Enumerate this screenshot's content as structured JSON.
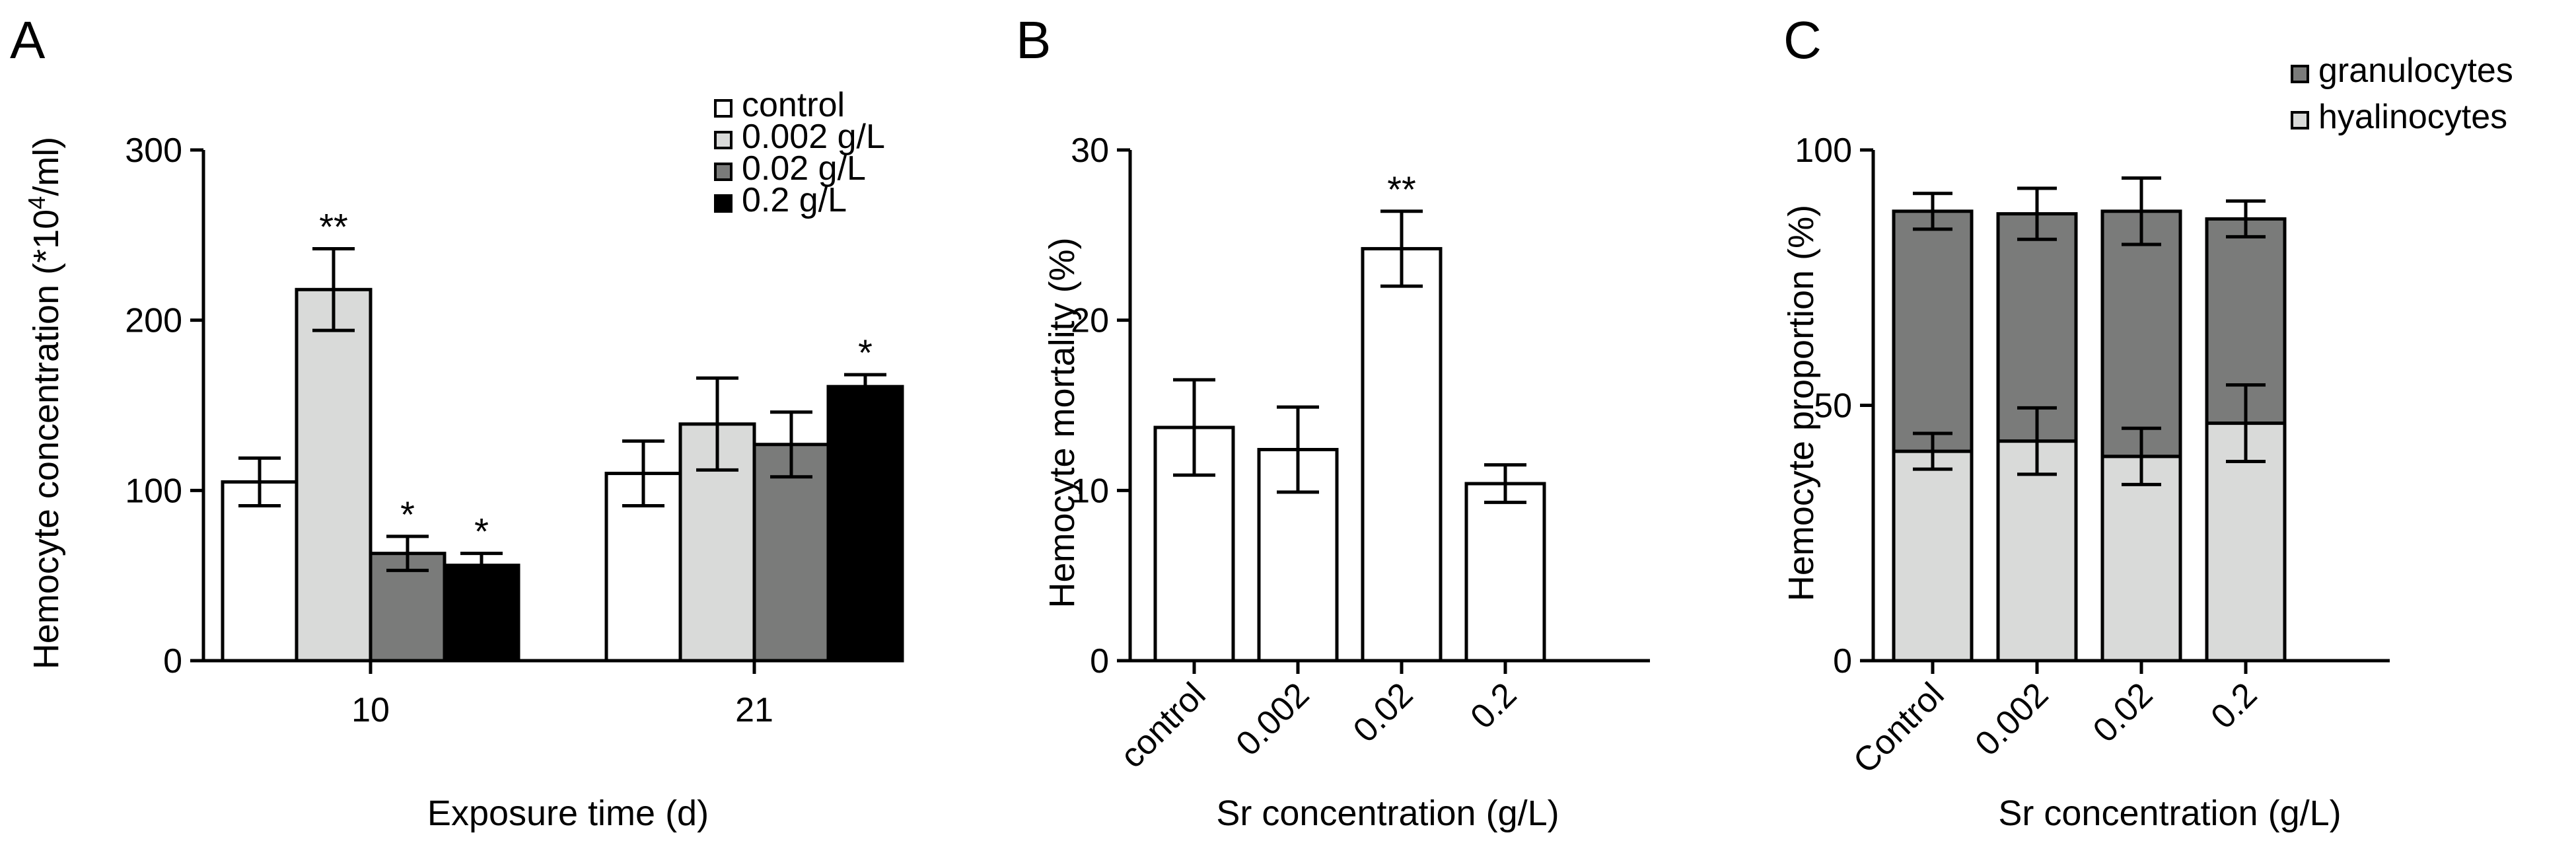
{
  "chart_data": [
    {
      "panel": "A",
      "type": "bar",
      "categories": [
        "10",
        "21"
      ],
      "series": [
        {
          "name": "control",
          "values": [
            105,
            110
          ],
          "errors": [
            14,
            19
          ],
          "color": "#ffffff",
          "sig": [
            "",
            ""
          ]
        },
        {
          "name": "0.002 g/L",
          "values": [
            218,
            139
          ],
          "errors": [
            24,
            27
          ],
          "color": "#d9dad9",
          "sig": [
            "**",
            ""
          ]
        },
        {
          "name": "0.02 g/L",
          "values": [
            63,
            127
          ],
          "errors": [
            10,
            19
          ],
          "color": "#7a7b7a",
          "sig": [
            "*",
            ""
          ]
        },
        {
          "name": "0.2 g/L",
          "values": [
            56,
            161
          ],
          "errors": [
            7,
            7
          ],
          "color": "#000000",
          "sig": [
            "*",
            "*"
          ]
        }
      ],
      "xlabel": "Exposure time (d)",
      "ylabel": "Hemocyte concentration (*10",
      "ylabel_sup": "4",
      "ylabel_end": "/ml)",
      "ylim": [
        0,
        300
      ],
      "yticks": [
        "0",
        "100",
        "200",
        "300"
      ],
      "legend_position": "top-right"
    },
    {
      "panel": "B",
      "type": "bar",
      "categories": [
        "control",
        "0.002",
        "0.02",
        "0.2"
      ],
      "values": [
        13.7,
        12.4,
        24.2,
        10.4
      ],
      "errors": [
        2.8,
        2.5,
        2.2,
        1.1
      ],
      "sig": [
        "",
        "",
        "**",
        ""
      ],
      "color": "#ffffff",
      "xlabel": "Sr concentration (g/L)",
      "ylabel": "Hemocyte mortality (%)",
      "ylim": [
        0,
        30
      ],
      "yticks": [
        "0",
        "10",
        "20",
        "30"
      ]
    },
    {
      "panel": "C",
      "type": "bar",
      "stacked": true,
      "categories": [
        "Control",
        "0.002",
        "0.02",
        "0.2"
      ],
      "series": [
        {
          "name": "hyalinocytes",
          "values": [
            41,
            43,
            40,
            46.5
          ],
          "errors": [
            3.5,
            6.5,
            5.5,
            7.5
          ],
          "color": "#d9dad9"
        },
        {
          "name": "granulocytes",
          "values": [
            47,
            44.5,
            48,
            40
          ],
          "errors": [
            3.5,
            5,
            6.5,
            3.5
          ],
          "color": "#7a7b7a"
        }
      ],
      "legend_order": [
        "granulocytes",
        "hyalinocytes"
      ],
      "xlabel": "Sr concentration (g/L)",
      "ylabel": "Hemocyte proportion (%)",
      "ylim": [
        0,
        100
      ],
      "yticks": [
        "0",
        "50",
        "100"
      ],
      "legend_position": "top-right"
    }
  ]
}
